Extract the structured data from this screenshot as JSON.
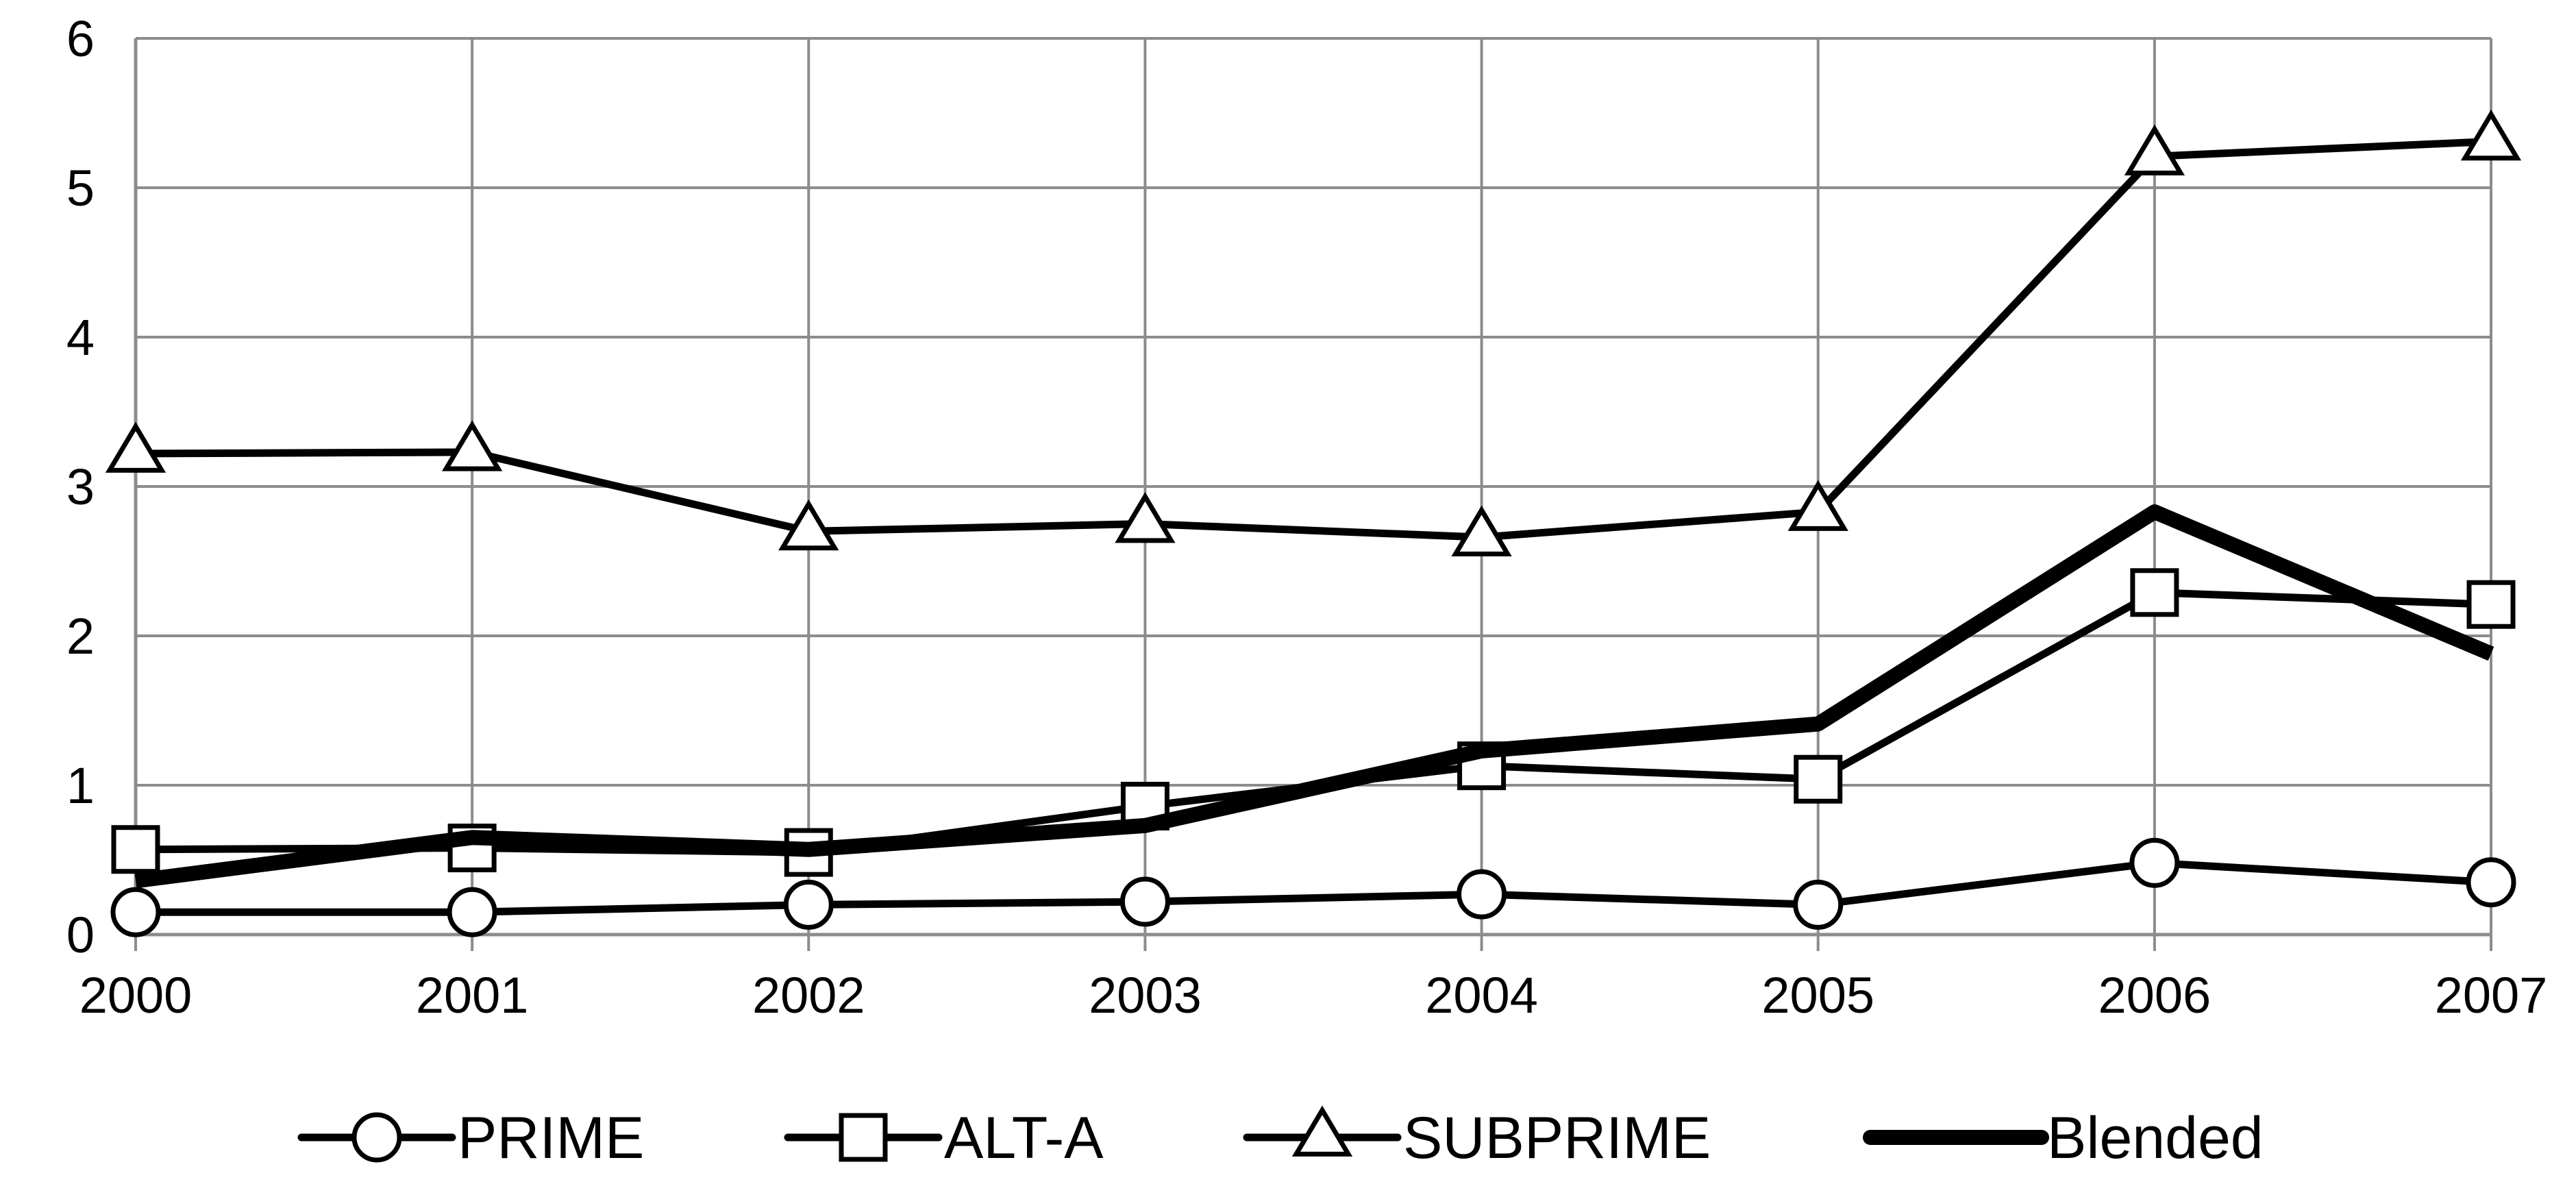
{
  "chart_data": {
    "type": "line",
    "title": "",
    "xlabel": "",
    "ylabel": "",
    "x": [
      "2000",
      "2001",
      "2002",
      "2003",
      "2004",
      "2005",
      "2006",
      "2007"
    ],
    "ylim": [
      0,
      6
    ],
    "yticks": [
      "0",
      "1",
      "2",
      "3",
      "4",
      "5",
      "6"
    ],
    "grid": true,
    "legend_position": "bottom",
    "series": [
      {
        "name": "PRIME",
        "values": [
          0.15,
          0.15,
          0.2,
          0.22,
          0.27,
          0.2,
          0.48,
          0.35
        ],
        "marker": "circle",
        "line_weight": "normal",
        "color": "#000000"
      },
      {
        "name": "ALT-A",
        "values": [
          0.57,
          0.58,
          0.55,
          0.86,
          1.13,
          1.04,
          2.29,
          2.21
        ],
        "marker": "square",
        "line_weight": "normal",
        "color": "#000000"
      },
      {
        "name": "SUBPRIME",
        "values": [
          3.22,
          3.23,
          2.7,
          2.75,
          2.66,
          2.83,
          5.21,
          5.31
        ],
        "marker": "triangle",
        "line_weight": "normal",
        "color": "#000000"
      },
      {
        "name": "Blended",
        "values": [
          0.36,
          0.65,
          0.57,
          0.73,
          1.23,
          1.41,
          2.83,
          1.88
        ],
        "marker": "none",
        "line_weight": "heavy",
        "color": "#000000"
      }
    ]
  }
}
